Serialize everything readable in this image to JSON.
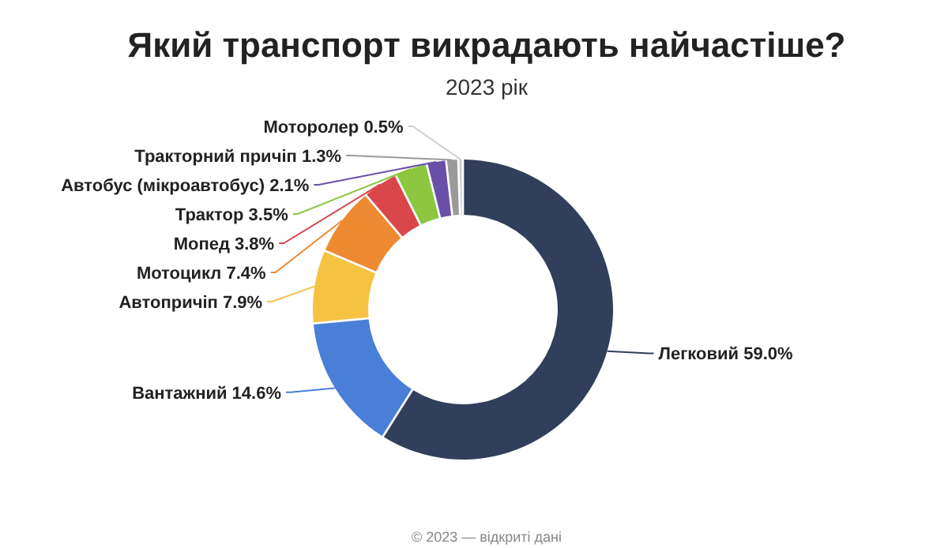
{
  "chart_data": {
    "type": "donut",
    "title": "Який транспорт викрадають найчастіше?",
    "subtitle": "2023 рік",
    "categories": [
      "Легковий",
      "Вантажний",
      "Автопричіп",
      "Мотоцикл",
      "Мопед",
      "Трактор",
      "Автобус (мікроавтобус)",
      "Тракторний причіп",
      "Моторолер"
    ],
    "values": [
      59.0,
      14.6,
      7.9,
      7.4,
      3.8,
      3.5,
      2.1,
      1.3,
      0.5
    ],
    "colors": [
      "#313e5c",
      "#4a7fd8",
      "#f5c242",
      "#ee8a32",
      "#d9474b",
      "#8dc63f",
      "#6a4fa8",
      "#9a9a9a",
      "#cfcfcf"
    ],
    "value_labels": [
      "59.0%",
      "14.6%",
      "7.9%",
      "7.4%",
      "3.8%",
      "3.5%",
      "2.1%",
      "1.3%",
      "0.5%"
    ],
    "annotations": [
      "© 2023 — відкриті дані"
    ]
  }
}
